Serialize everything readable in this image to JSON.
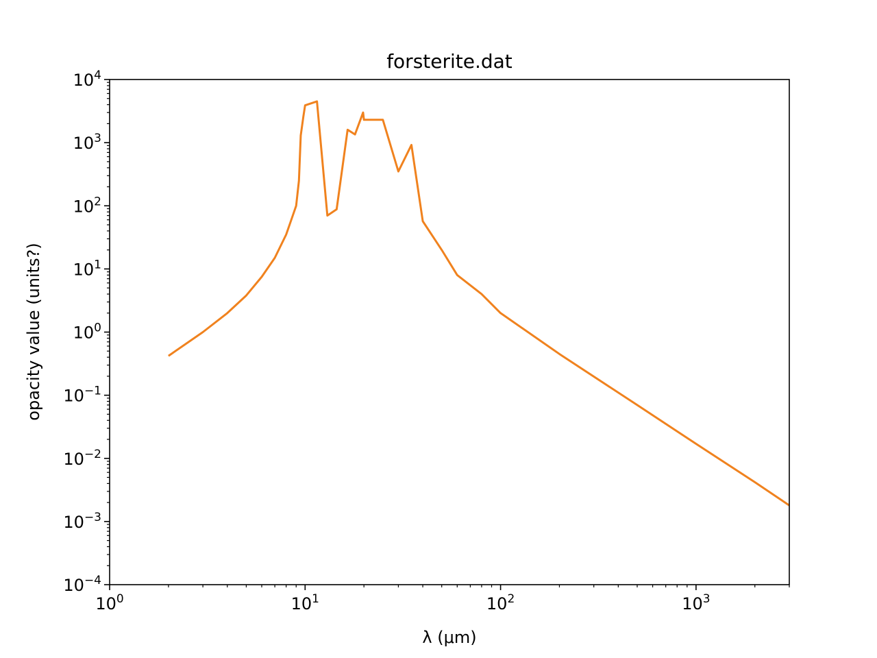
{
  "chart_data": {
    "type": "line",
    "title": "forsterite.dat",
    "xlabel": "λ (μm)",
    "ylabel": "opacity value (units?)",
    "xscale": "log",
    "yscale": "log",
    "xlim": [
      1,
      3000
    ],
    "ylim": [
      0.0001,
      10000
    ],
    "grid": false,
    "legend": "none",
    "x_ticks": [
      {
        "value": 1,
        "base": "10",
        "exp": "0"
      },
      {
        "value": 10,
        "base": "10",
        "exp": "1"
      },
      {
        "value": 100,
        "base": "10",
        "exp": "2"
      },
      {
        "value": 1000,
        "base": "10",
        "exp": "3"
      }
    ],
    "y_ticks": [
      {
        "value": 0.0001,
        "base": "10",
        "exp": "−4"
      },
      {
        "value": 0.001,
        "base": "10",
        "exp": "−3"
      },
      {
        "value": 0.01,
        "base": "10",
        "exp": "−2"
      },
      {
        "value": 0.1,
        "base": "10",
        "exp": "−1"
      },
      {
        "value": 1,
        "base": "10",
        "exp": "0"
      },
      {
        "value": 10,
        "base": "10",
        "exp": "1"
      },
      {
        "value": 100,
        "base": "10",
        "exp": "2"
      },
      {
        "value": 1000,
        "base": "10",
        "exp": "3"
      },
      {
        "value": 10000,
        "base": "10",
        "exp": "4"
      }
    ],
    "series": [
      {
        "color": "#f0821e",
        "x": [
          2,
          3,
          4,
          5,
          6,
          7,
          8,
          8.5,
          9,
          9.3,
          9.5,
          9.8,
          10,
          11.5,
          13,
          14.5,
          16.5,
          18,
          19.8,
          20,
          25,
          30,
          35,
          40,
          50,
          60,
          80,
          100,
          200,
          500,
          1000,
          2000,
          3000
        ],
        "y": [
          0.42,
          1.0,
          2.0,
          3.8,
          7.5,
          15,
          35,
          60,
          100,
          250,
          1300,
          2600,
          3900,
          4500,
          70,
          88,
          1600,
          1350,
          3000,
          2300,
          2300,
          350,
          920,
          57,
          20,
          8,
          4,
          2,
          0.45,
          0.07,
          0.017,
          0.0042,
          0.0018
        ]
      }
    ]
  }
}
